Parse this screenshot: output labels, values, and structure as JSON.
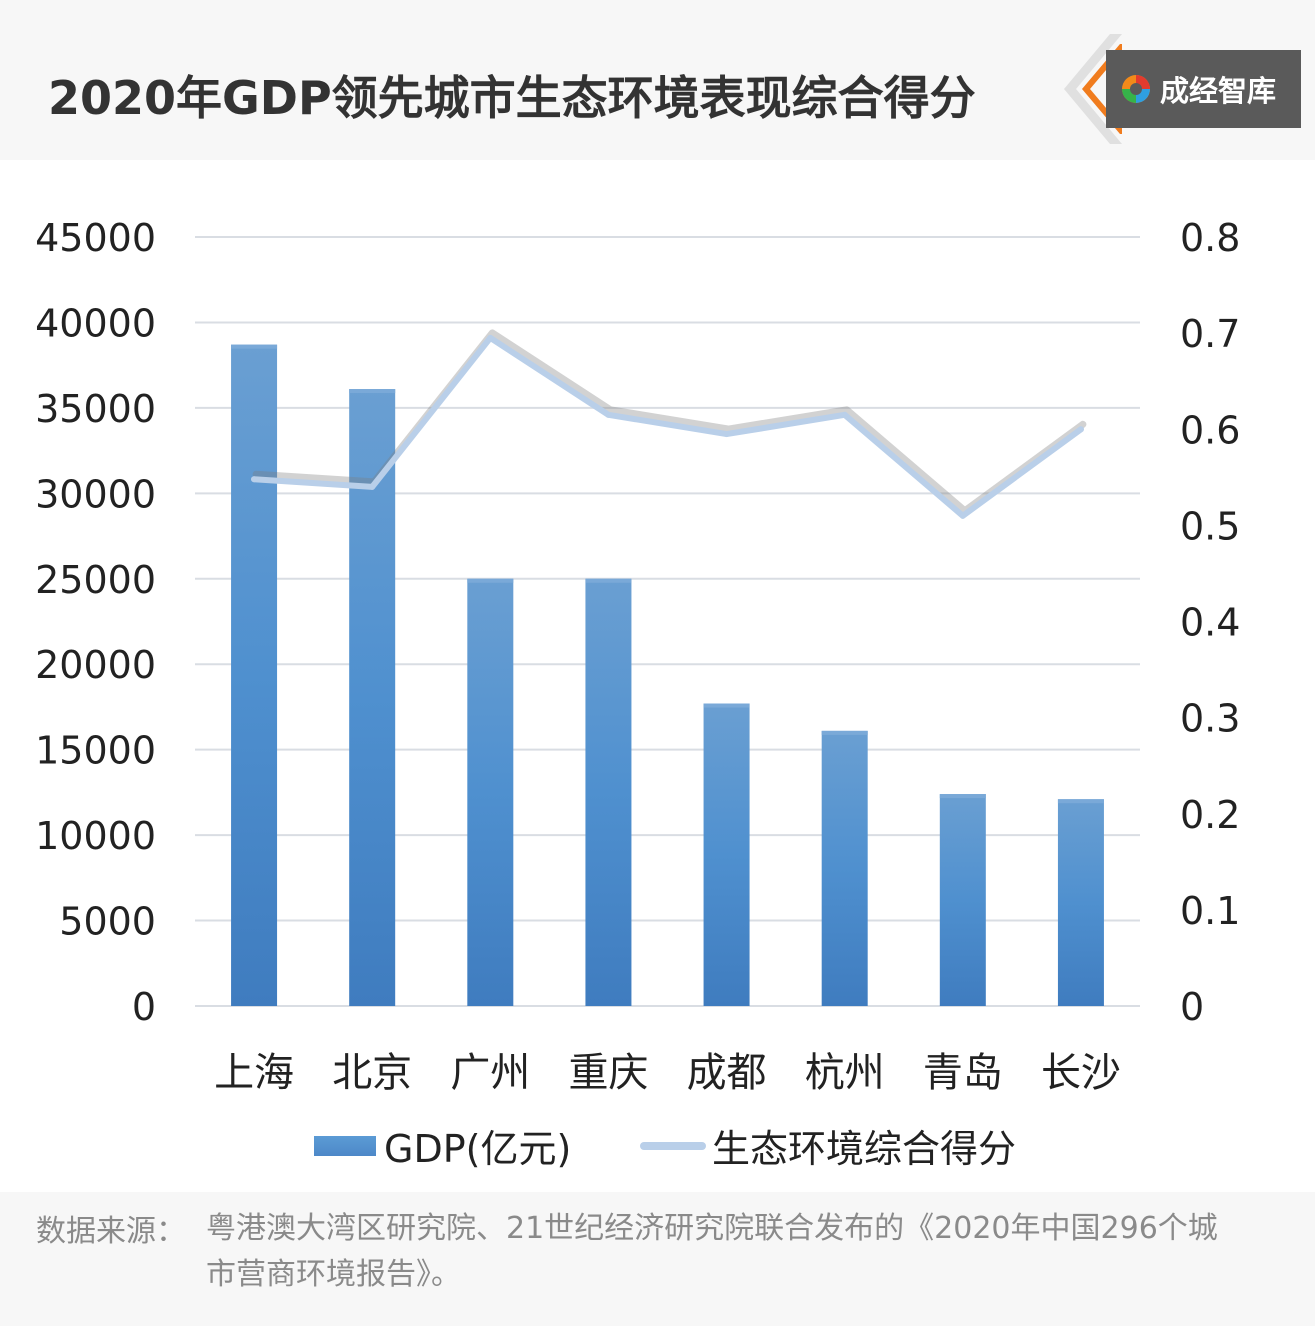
{
  "title": "2020年GDP领先城市生态环境表现综合得分",
  "brand": {
    "name": "成经智库",
    "logo_icon": "swirl-logo-icon"
  },
  "chart_data": {
    "type": "bar",
    "categories": [
      "上海",
      "北京",
      "广州",
      "重庆",
      "成都",
      "杭州",
      "青岛",
      "长沙"
    ],
    "series": [
      {
        "name": "GDP(亿元)",
        "type": "bar",
        "axis": "left",
        "values": [
          38700,
          36100,
          25000,
          25000,
          17700,
          16100,
          12400,
          12100
        ]
      },
      {
        "name": "生态环境综合得分",
        "type": "line",
        "axis": "right",
        "values": [
          0.548,
          0.54,
          0.695,
          0.615,
          0.595,
          0.615,
          0.51,
          0.6
        ]
      }
    ],
    "y_left": {
      "min": 0,
      "max": 45000,
      "ticks": [
        "0",
        "5000",
        "10000",
        "15000",
        "20000",
        "25000",
        "30000",
        "35000",
        "40000",
        "45000"
      ]
    },
    "y_right": {
      "min": 0,
      "max": 0.8,
      "ticks": [
        "0",
        "0.1",
        "0.2",
        "0.3",
        "0.4",
        "0.5",
        "0.6",
        "0.7",
        "0.8"
      ]
    },
    "grid": true,
    "legend": "bottom",
    "colors": {
      "bar": "#5b9bd5",
      "line": "#b9cfe9",
      "grid": "#d9dde3"
    }
  },
  "source": {
    "prefix": "数据来源：",
    "text": "粤港澳大湾区研究院、21世纪经济研究院联合发布的《2020年中国296个城市营商环境报告》。"
  }
}
